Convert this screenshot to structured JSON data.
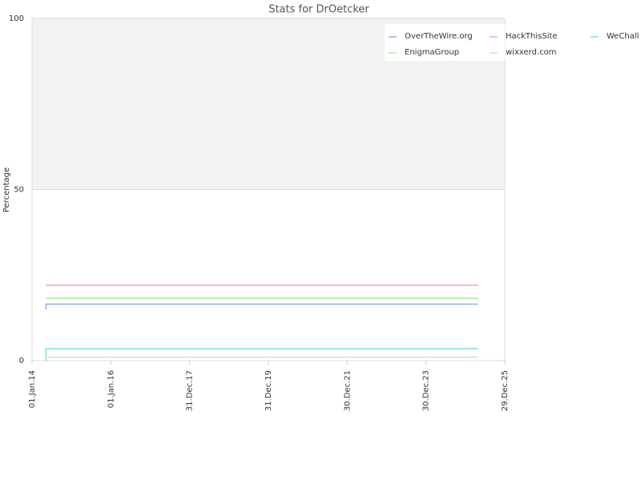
{
  "chart_data": {
    "type": "line",
    "title": "Stats for DrOetcker",
    "y_label": "Percentage",
    "x": [
      "2014-05-07",
      "2014-05-10",
      "2025-04-26"
    ],
    "series": [
      {
        "name": "OverTheWire.org",
        "color": "#8fb3e6",
        "values": [
          15,
          16.5,
          16.5
        ]
      },
      {
        "name": "HackThisSite",
        "color": "#f5a3cc",
        "values": [
          22,
          22,
          22
        ]
      },
      {
        "name": "WeChall",
        "color": "#7de3c4",
        "values": [
          0,
          3.5,
          3.5
        ]
      },
      {
        "name": "EnigmaGroup",
        "color": "#a8ef99",
        "values": [
          18.2,
          18.2,
          18.2
        ]
      },
      {
        "name": "wixxerd.com",
        "color": "#f2cfc8",
        "values": [
          1,
          1,
          1
        ]
      }
    ],
    "xlim": [
      "2014-01-01",
      "2025-12-29"
    ],
    "xticks": [
      {
        "value": "2014-01-01",
        "label": "01.Jan.14"
      },
      {
        "value": "2016-01-01",
        "label": "01.Jan.16"
      },
      {
        "value": "2017-12-31",
        "label": "31.Dec.17"
      },
      {
        "value": "2019-12-31",
        "label": "31.Dec.19"
      },
      {
        "value": "2021-12-30",
        "label": "30.Dec.21"
      },
      {
        "value": "2023-12-30",
        "label": "30.Dec.23"
      },
      {
        "value": "2025-12-29",
        "label": "29.Dec.25"
      }
    ],
    "ylim": [
      0,
      100
    ],
    "yticks": [
      0,
      50,
      100
    ],
    "grid": true,
    "legend": "top-right"
  }
}
